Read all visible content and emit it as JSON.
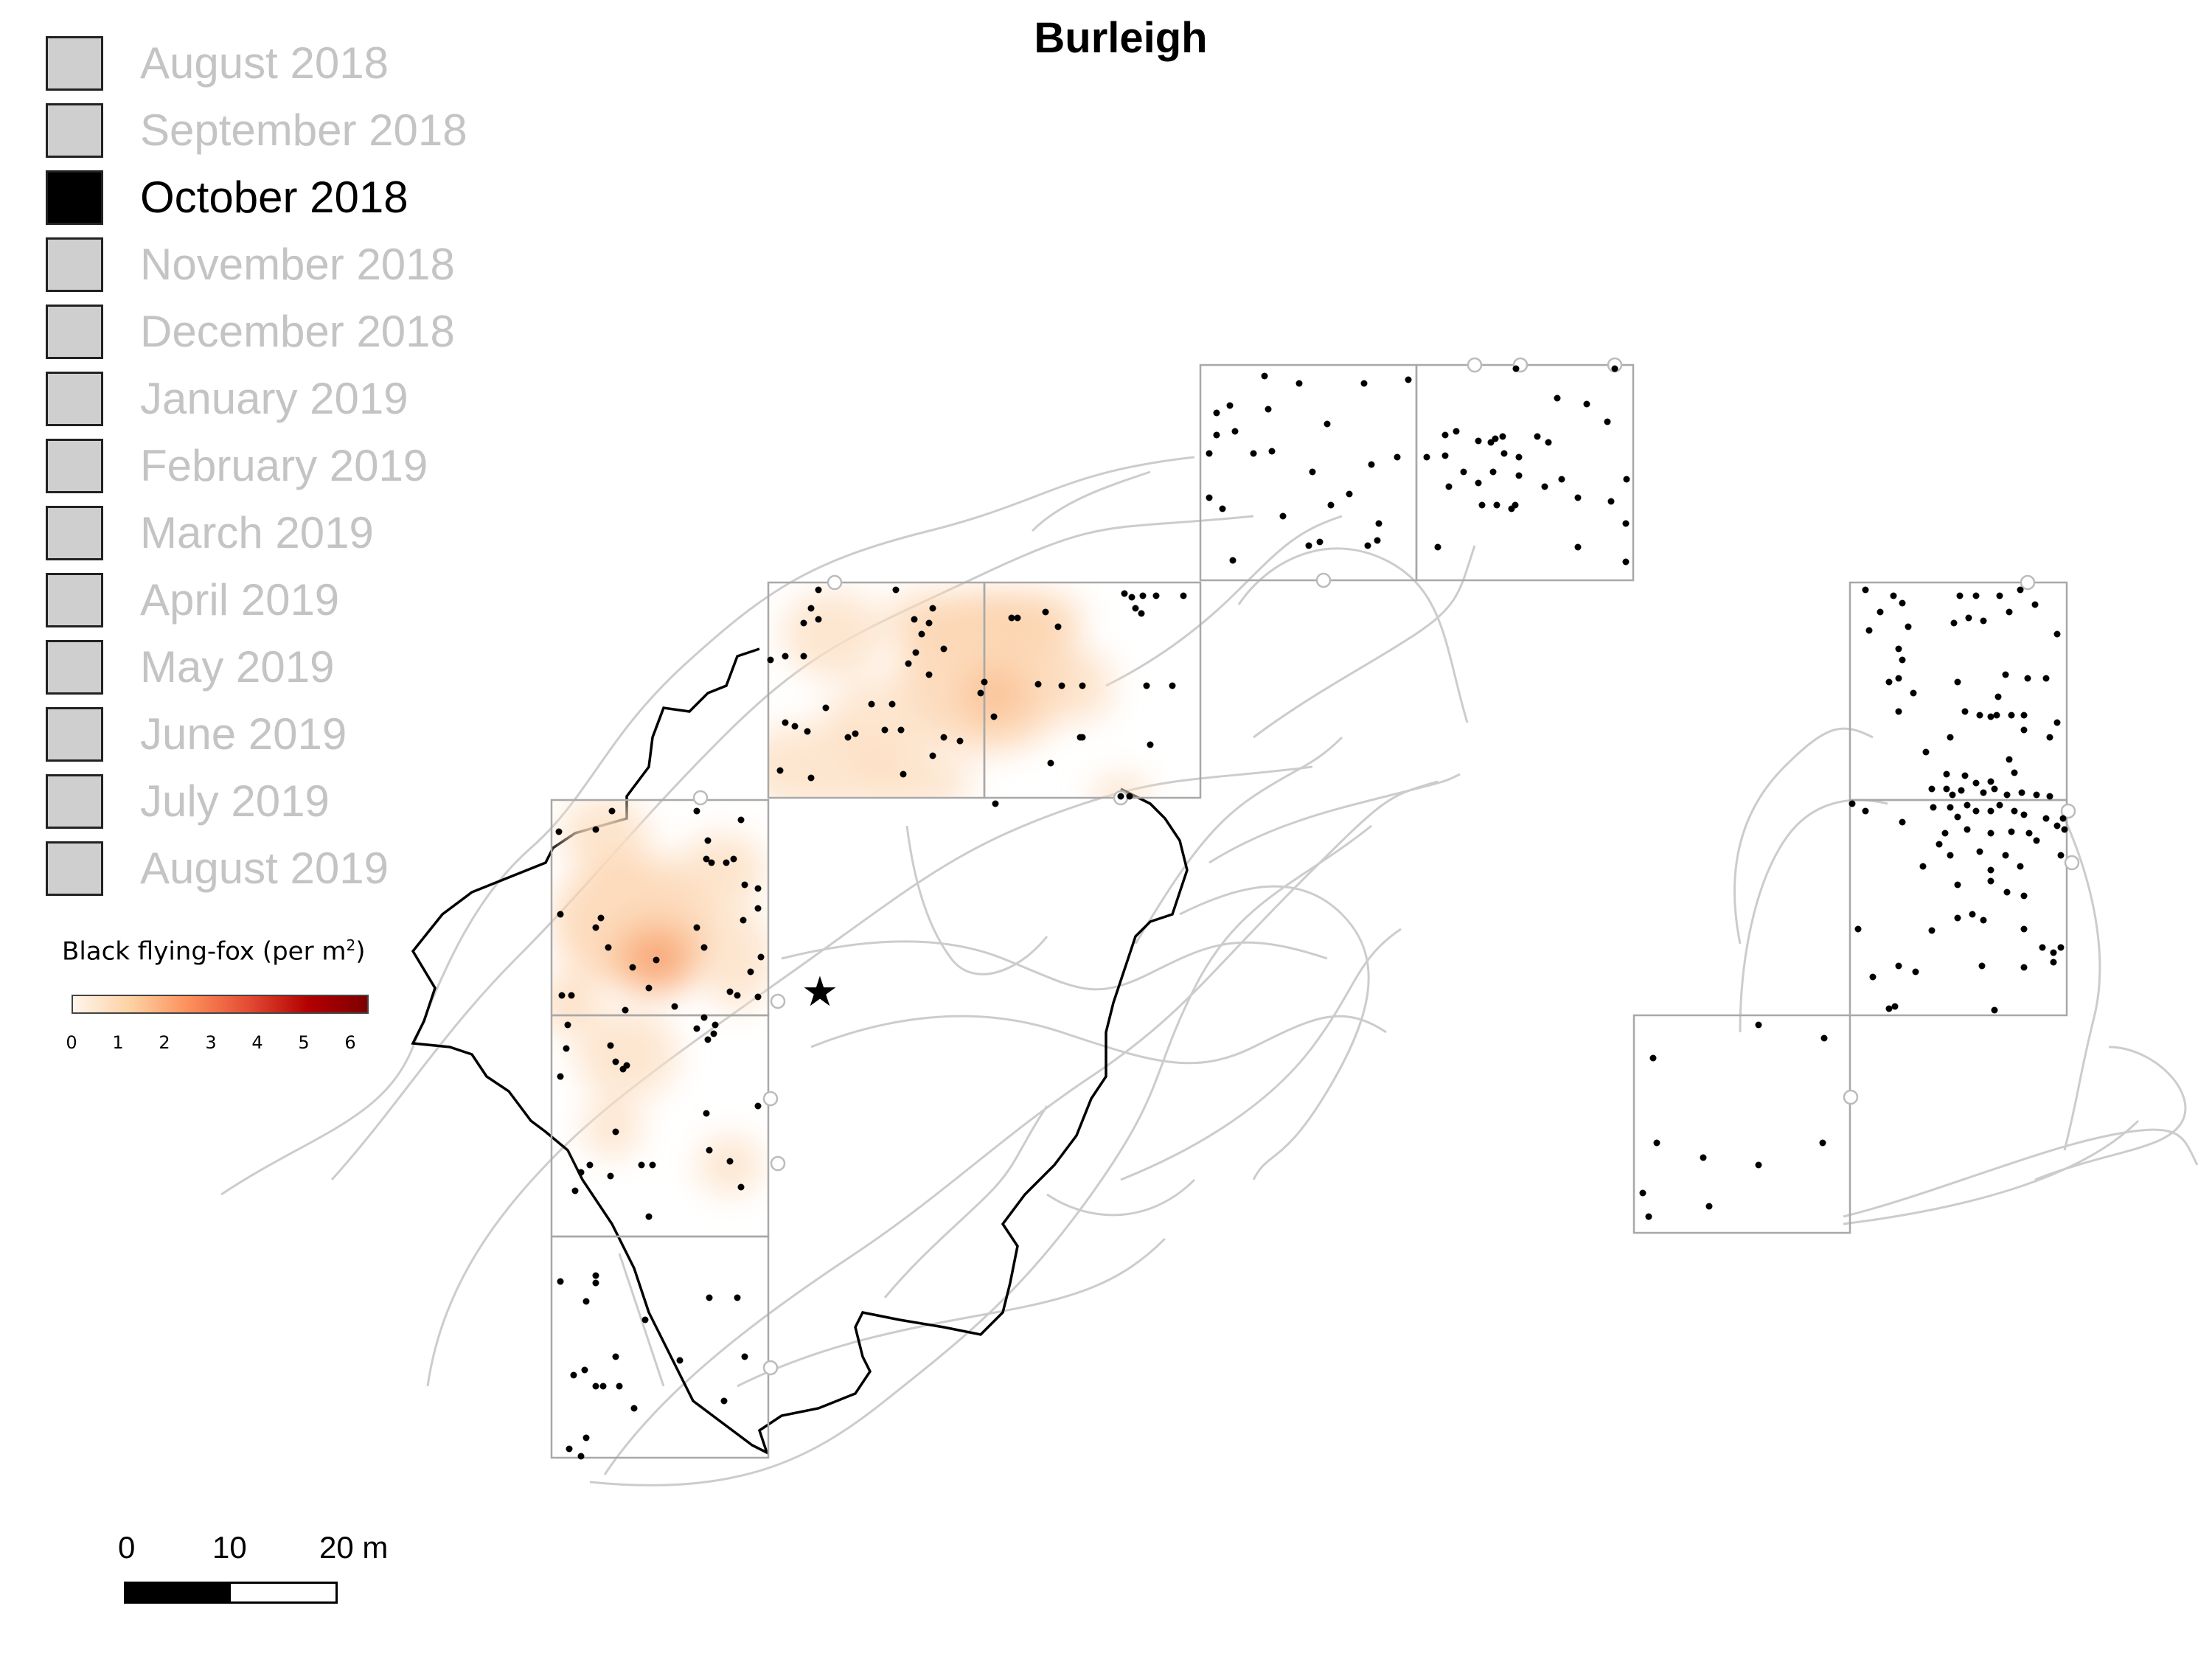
{
  "title": "Burleigh",
  "months": [
    {
      "label": "August 2018",
      "active": false
    },
    {
      "label": "September 2018",
      "active": false
    },
    {
      "label": "October 2018",
      "active": true
    },
    {
      "label": "November 2018",
      "active": false
    },
    {
      "label": "December 2018",
      "active": false
    },
    {
      "label": "January 2019",
      "active": false
    },
    {
      "label": "February 2019",
      "active": false
    },
    {
      "label": "March 2019",
      "active": false
    },
    {
      "label": "April 2019",
      "active": false
    },
    {
      "label": "May 2019",
      "active": false
    },
    {
      "label": "June 2019",
      "active": false
    },
    {
      "label": "July 2019",
      "active": false
    },
    {
      "label": "August 2019",
      "active": false
    }
  ],
  "legend": {
    "title_main": "Black flying-fox (per m",
    "title_sup": "2",
    "title_end": ")",
    "ticks": [
      "0",
      "1",
      "2",
      "3",
      "4",
      "5",
      "6"
    ],
    "colors": [
      "#fff5eb",
      "#fdd0a2",
      "#fc8d59",
      "#e34a33",
      "#b30000",
      "#7f0000"
    ]
  },
  "scale": {
    "labels": [
      "0",
      "10",
      "20 m"
    ]
  },
  "colors": {
    "inactive_text": "#c4c4c4",
    "inactive_swatch": "#cfcfcf",
    "active": "#000000",
    "tracks": "#cccccc",
    "boundary": "#000000",
    "grid": "#a8a8a8"
  },
  "icons": {
    "roost_marker": "star-icon"
  }
}
